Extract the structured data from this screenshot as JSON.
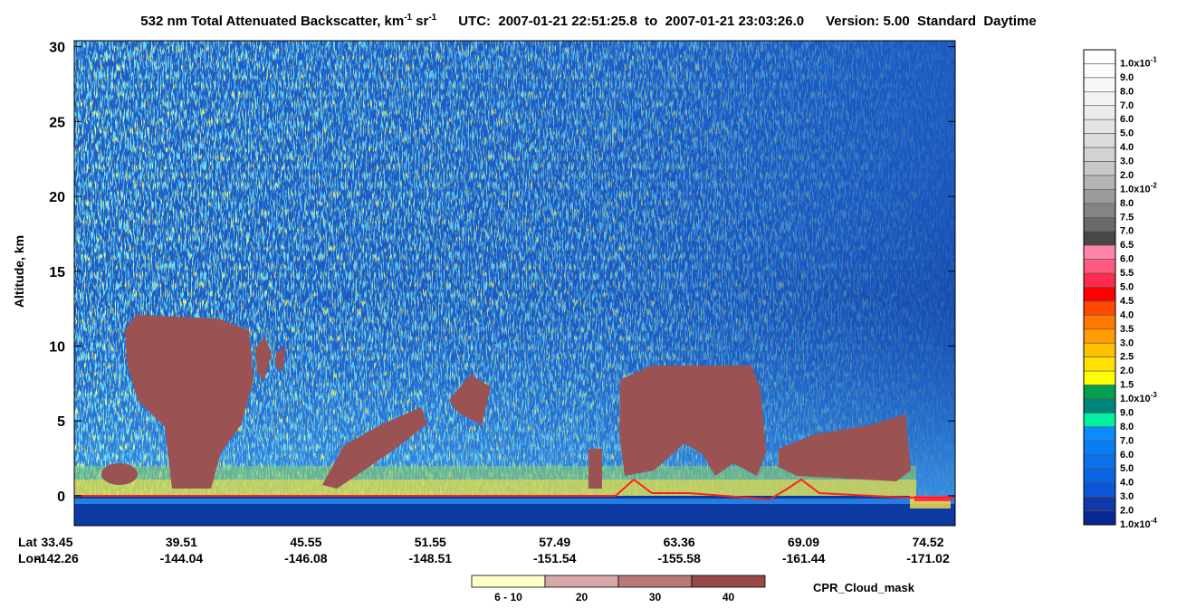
{
  "chart_data": {
    "type": "curtain",
    "title": {
      "main": "532 nm Total Attenuated Backscatter, km",
      "exp1": "-1",
      "unit2": "sr",
      "exp2": "-1",
      "time": "UTC:  2007-01-21 22:51:25.8  to  2007-01-21 23:03:26.0",
      "version": "Version: 5.00  Standard  Daytime"
    },
    "ylabel": "Altitude, km",
    "ylim": [
      -2,
      30.4
    ],
    "yticks": [
      0,
      5,
      10,
      15,
      20,
      25,
      30
    ],
    "row_labels": [
      "Lat",
      "Lon"
    ],
    "lat": [
      33.45,
      39.51,
      45.55,
      51.55,
      57.49,
      63.36,
      69.09,
      74.52
    ],
    "lon": [
      -142.26,
      -144.04,
      -146.08,
      -148.51,
      -151.54,
      -155.58,
      -161.44,
      -171.02
    ],
    "colorbar": [
      {
        "label": "1.0x10",
        "exp": "-1",
        "color": "#ffffff"
      },
      {
        "label": "9.0",
        "color": "#fcfcfc"
      },
      {
        "label": "8.0",
        "color": "#f8f8f8"
      },
      {
        "label": "7.0",
        "color": "#f2f2f2"
      },
      {
        "label": "6.0",
        "color": "#ececec"
      },
      {
        "label": "5.0",
        "color": "#e4e4e4"
      },
      {
        "label": "4.0",
        "color": "#dcdcdc"
      },
      {
        "label": "3.0",
        "color": "#d2d2d2"
      },
      {
        "label": "2.0",
        "color": "#c8c8c8"
      },
      {
        "label": "1.0x10",
        "exp": "-2",
        "color": "#b4b4b4"
      },
      {
        "label": "8.0",
        "color": "#9c9c9c"
      },
      {
        "label": "7.5",
        "color": "#848484"
      },
      {
        "label": "7.0",
        "color": "#6a6a6a"
      },
      {
        "label": "6.5",
        "color": "#474747"
      },
      {
        "label": "6.0",
        "color": "#ff85a8"
      },
      {
        "label": "5.5",
        "color": "#ff5a80"
      },
      {
        "label": "5.0",
        "color": "#ff2a50"
      },
      {
        "label": "4.5",
        "color": "#ff0000"
      },
      {
        "label": "4.0",
        "color": "#ff4a00"
      },
      {
        "label": "3.5",
        "color": "#ff7a00"
      },
      {
        "label": "3.0",
        "color": "#ff9c00"
      },
      {
        "label": "2.5",
        "color": "#ffc000"
      },
      {
        "label": "2.0",
        "color": "#ffe000"
      },
      {
        "label": "1.5",
        "color": "#ffff00"
      },
      {
        "label": "1.0x10",
        "exp": "-3",
        "color": "#00a050"
      },
      {
        "label": "9.0",
        "color": "#00857a"
      },
      {
        "label": "8.0",
        "color": "#00f0a0"
      },
      {
        "label": "7.0",
        "color": "#0a8cff"
      },
      {
        "label": "6.0",
        "color": "#0a7df5"
      },
      {
        "label": "5.0",
        "color": "#0a70ee"
      },
      {
        "label": "4.0",
        "color": "#0a64e4"
      },
      {
        "label": "3.0",
        "color": "#0a56d8"
      },
      {
        "label": "2.0",
        "color": "#1038a8"
      },
      {
        "label": "1.0x10",
        "exp": "-4",
        "color": "#082890"
      }
    ],
    "cloud_mask": {
      "title": "CPR_Cloud_mask",
      "bins": [
        {
          "label": "6 - 10",
          "color": "#ffffc8"
        },
        {
          "label": "20",
          "color": "#d8a8a8"
        },
        {
          "label": "30",
          "color": "#b87878"
        },
        {
          "label": "40",
          "color": "#984848"
        }
      ]
    }
  }
}
